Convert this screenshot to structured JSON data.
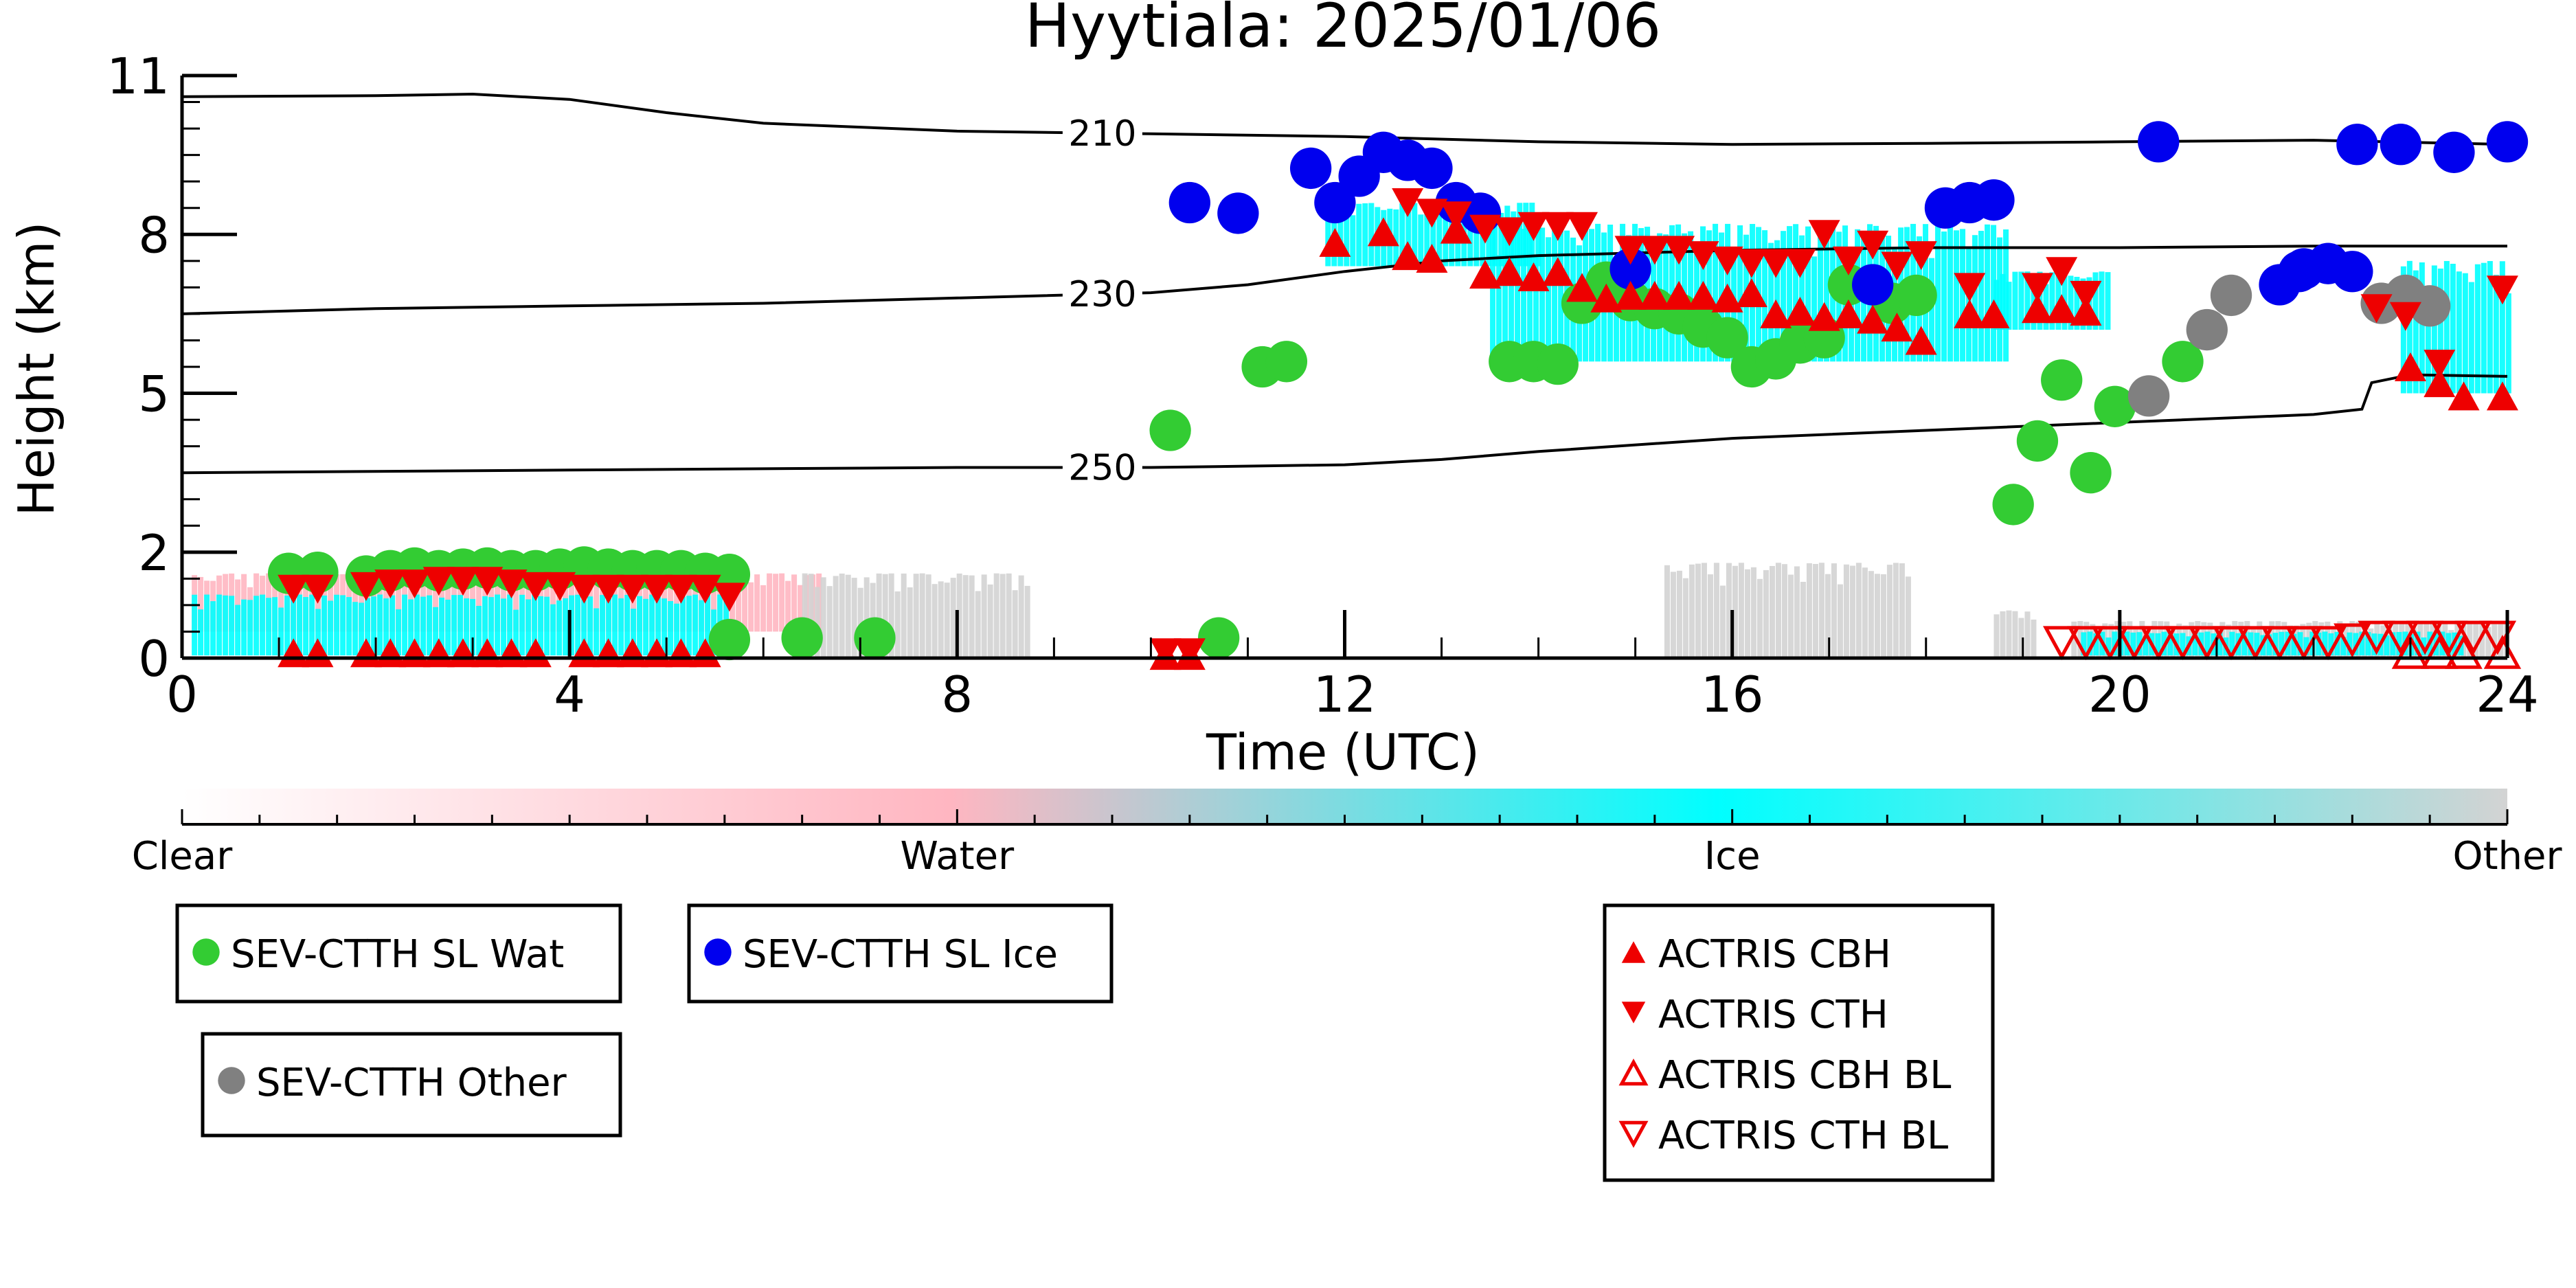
{
  "chart_data": {
    "type": "scatter",
    "title": "Hyytiala: 2025/01/06",
    "xlabel": "Time (UTC)",
    "ylabel": "Height (km)",
    "xlim": [
      0,
      24
    ],
    "ylim": [
      0,
      11
    ],
    "xticks": [
      0,
      4,
      8,
      12,
      16,
      20,
      24
    ],
    "yticks": [
      0,
      2,
      5,
      8,
      11
    ],
    "grid": false,
    "colors": {
      "clear": "#ffffff",
      "water": "#ffb6c1",
      "ice": "#00ffff",
      "other": "#d3d3d3",
      "sev_wat": "#33cc33",
      "sev_ice": "#0000ee",
      "sev_other": "#808080",
      "actris": "#ee0000"
    },
    "colorbar": {
      "labels": [
        "Clear",
        "Water",
        "Ice",
        "Other"
      ]
    },
    "contours": [
      {
        "label": "210",
        "points": [
          [
            0,
            10.6
          ],
          [
            2,
            10.62
          ],
          [
            3,
            10.65
          ],
          [
            4,
            10.55
          ],
          [
            5,
            10.3
          ],
          [
            6,
            10.1
          ],
          [
            8,
            9.95
          ],
          [
            10,
            9.9
          ],
          [
            12,
            9.85
          ],
          [
            14,
            9.75
          ],
          [
            16,
            9.7
          ],
          [
            18,
            9.72
          ],
          [
            20,
            9.75
          ],
          [
            22,
            9.78
          ],
          [
            24,
            9.7
          ]
        ],
        "label_x": 9.5
      },
      {
        "label": "230",
        "points": [
          [
            0,
            6.5
          ],
          [
            2,
            6.6
          ],
          [
            4,
            6.65
          ],
          [
            6,
            6.7
          ],
          [
            8,
            6.8
          ],
          [
            10,
            6.9
          ],
          [
            11,
            7.05
          ],
          [
            12,
            7.3
          ],
          [
            13,
            7.5
          ],
          [
            14,
            7.6
          ],
          [
            16,
            7.7
          ],
          [
            18,
            7.75
          ],
          [
            20,
            7.75
          ],
          [
            22,
            7.78
          ],
          [
            24,
            7.78
          ]
        ],
        "label_x": 9.5
      },
      {
        "label": "250",
        "points": [
          [
            0,
            3.5
          ],
          [
            4,
            3.55
          ],
          [
            8,
            3.6
          ],
          [
            10,
            3.6
          ],
          [
            12,
            3.65
          ],
          [
            13,
            3.75
          ],
          [
            14,
            3.9
          ],
          [
            16,
            4.15
          ],
          [
            18,
            4.3
          ],
          [
            20,
            4.45
          ],
          [
            22,
            4.6
          ],
          [
            22.5,
            4.7
          ],
          [
            22.6,
            5.2
          ],
          [
            23,
            5.35
          ],
          [
            24,
            5.32
          ]
        ],
        "label_x": 9.5
      }
    ],
    "background_fields": [
      {
        "class": "water",
        "x0": 0.1,
        "x1": 6.6,
        "y0": 0.5,
        "y1": 1.6
      },
      {
        "class": "ice",
        "x0": 0.1,
        "x1": 5.6,
        "y0": 0.05,
        "y1": 1.2
      },
      {
        "class": "other",
        "x0": 6.4,
        "x1": 8.7,
        "y0": 0.0,
        "y1": 1.6
      },
      {
        "class": "other",
        "x0": 15.3,
        "x1": 17.8,
        "y0": 0.0,
        "y1": 1.8
      },
      {
        "class": "other",
        "x0": 18.7,
        "x1": 19.1,
        "y0": 0.0,
        "y1": 0.9
      },
      {
        "class": "other",
        "x0": 19.5,
        "x1": 24.0,
        "y0": 0.0,
        "y1": 0.7
      },
      {
        "class": "ice",
        "x0": 11.8,
        "x1": 14.0,
        "y0": 7.4,
        "y1": 8.6
      },
      {
        "class": "ice",
        "x0": 13.5,
        "x1": 18.8,
        "y0": 5.6,
        "y1": 8.2
      },
      {
        "class": "ice",
        "x0": 18.7,
        "x1": 19.9,
        "y0": 6.2,
        "y1": 7.3
      },
      {
        "class": "ice",
        "x0": 22.9,
        "x1": 24.0,
        "y0": 5.0,
        "y1": 7.5
      },
      {
        "class": "ice",
        "x0": 19.6,
        "x1": 23.5,
        "y0": 0.05,
        "y1": 0.5
      }
    ],
    "series": [
      {
        "name": "SEV-CTTH SL Wat",
        "marker": "circle",
        "points": [
          [
            1.1,
            1.6
          ],
          [
            1.4,
            1.62
          ],
          [
            1.9,
            1.55
          ],
          [
            2.15,
            1.65
          ],
          [
            2.4,
            1.7
          ],
          [
            2.65,
            1.65
          ],
          [
            2.9,
            1.68
          ],
          [
            3.15,
            1.7
          ],
          [
            3.4,
            1.65
          ],
          [
            3.65,
            1.65
          ],
          [
            3.9,
            1.68
          ],
          [
            4.15,
            1.72
          ],
          [
            4.4,
            1.68
          ],
          [
            4.65,
            1.65
          ],
          [
            4.9,
            1.65
          ],
          [
            5.15,
            1.65
          ],
          [
            5.4,
            1.6
          ],
          [
            5.65,
            1.58
          ],
          [
            5.65,
            0.35
          ],
          [
            6.4,
            0.38
          ],
          [
            7.15,
            0.38
          ],
          [
            10.2,
            4.3
          ],
          [
            10.7,
            0.38
          ],
          [
            11.15,
            5.5
          ],
          [
            11.4,
            5.6
          ],
          [
            13.7,
            5.6
          ],
          [
            13.95,
            5.6
          ],
          [
            14.2,
            5.55
          ],
          [
            14.45,
            6.7
          ],
          [
            14.7,
            7.1
          ],
          [
            14.95,
            6.75
          ],
          [
            15.2,
            6.6
          ],
          [
            15.45,
            6.5
          ],
          [
            15.7,
            6.25
          ],
          [
            15.95,
            6.05
          ],
          [
            16.2,
            5.5
          ],
          [
            16.45,
            5.65
          ],
          [
            16.7,
            5.95
          ],
          [
            16.95,
            6.05
          ],
          [
            17.2,
            7.05
          ],
          [
            17.65,
            6.7
          ],
          [
            17.9,
            6.85
          ],
          [
            18.9,
            2.9
          ],
          [
            19.15,
            4.1
          ],
          [
            19.4,
            5.25
          ],
          [
            19.7,
            3.5
          ],
          [
            19.95,
            4.75
          ],
          [
            20.65,
            5.6
          ]
        ]
      },
      {
        "name": "SEV-CTTH SL Ice",
        "marker": "circle",
        "points": [
          [
            10.4,
            8.6
          ],
          [
            10.9,
            8.4
          ],
          [
            11.65,
            9.25
          ],
          [
            11.9,
            8.6
          ],
          [
            12.15,
            9.1
          ],
          [
            12.4,
            9.55
          ],
          [
            12.65,
            9.4
          ],
          [
            12.9,
            9.25
          ],
          [
            13.15,
            8.6
          ],
          [
            13.4,
            8.4
          ],
          [
            14.95,
            7.35
          ],
          [
            17.45,
            7.05
          ],
          [
            18.2,
            8.5
          ],
          [
            18.45,
            8.6
          ],
          [
            18.7,
            8.65
          ],
          [
            20.4,
            9.75
          ],
          [
            21.85,
            7.3
          ],
          [
            21.65,
            7.05
          ],
          [
            21.9,
            7.35
          ],
          [
            22.15,
            7.45
          ],
          [
            22.4,
            7.3
          ],
          [
            22.45,
            9.7
          ],
          [
            22.9,
            9.7
          ],
          [
            23.45,
            9.55
          ],
          [
            24.0,
            9.75
          ]
        ]
      },
      {
        "name": "SEV-CTTH Other",
        "marker": "circle",
        "points": [
          [
            20.3,
            4.95
          ],
          [
            20.9,
            6.2
          ],
          [
            21.15,
            6.85
          ],
          [
            22.7,
            6.7
          ],
          [
            22.95,
            6.85
          ],
          [
            23.2,
            6.65
          ]
        ]
      },
      {
        "name": "ACTRIS CBH",
        "marker": "triangle-up",
        "points": [
          [
            1.15,
            0.1
          ],
          [
            1.4,
            0.1
          ],
          [
            1.9,
            0.1
          ],
          [
            2.15,
            0.1
          ],
          [
            2.4,
            0.1
          ],
          [
            2.65,
            0.1
          ],
          [
            2.9,
            0.1
          ],
          [
            3.15,
            0.1
          ],
          [
            3.4,
            0.1
          ],
          [
            3.65,
            0.1
          ],
          [
            4.15,
            0.1
          ],
          [
            4.4,
            0.1
          ],
          [
            4.65,
            0.1
          ],
          [
            4.9,
            0.1
          ],
          [
            5.15,
            0.1
          ],
          [
            5.4,
            0.1
          ],
          [
            10.15,
            0.05
          ],
          [
            10.4,
            0.05
          ],
          [
            11.9,
            7.85
          ],
          [
            12.4,
            8.05
          ],
          [
            12.65,
            7.6
          ],
          [
            12.9,
            7.55
          ],
          [
            13.15,
            8.1
          ],
          [
            13.45,
            7.25
          ],
          [
            13.7,
            7.3
          ],
          [
            13.95,
            7.2
          ],
          [
            14.2,
            7.3
          ],
          [
            14.45,
            7.0
          ],
          [
            14.7,
            6.8
          ],
          [
            14.95,
            6.85
          ],
          [
            15.2,
            6.85
          ],
          [
            15.45,
            6.85
          ],
          [
            15.7,
            6.85
          ],
          [
            15.95,
            6.8
          ],
          [
            16.2,
            6.9
          ],
          [
            16.45,
            6.5
          ],
          [
            16.7,
            6.55
          ],
          [
            16.95,
            6.45
          ],
          [
            17.2,
            6.5
          ],
          [
            17.45,
            6.4
          ],
          [
            17.7,
            6.25
          ],
          [
            17.95,
            6.0
          ],
          [
            18.45,
            6.5
          ],
          [
            18.7,
            6.5
          ],
          [
            19.15,
            6.6
          ],
          [
            19.4,
            6.6
          ],
          [
            19.65,
            6.55
          ],
          [
            23.0,
            5.5
          ],
          [
            23.3,
            5.2
          ],
          [
            23.55,
            4.95
          ],
          [
            23.95,
            4.95
          ]
        ]
      },
      {
        "name": "ACTRIS CTH",
        "marker": "triangle-down",
        "points": [
          [
            1.15,
            1.3
          ],
          [
            1.4,
            1.3
          ],
          [
            1.9,
            1.35
          ],
          [
            2.15,
            1.4
          ],
          [
            2.4,
            1.4
          ],
          [
            2.65,
            1.45
          ],
          [
            2.9,
            1.45
          ],
          [
            3.15,
            1.45
          ],
          [
            3.4,
            1.4
          ],
          [
            3.65,
            1.35
          ],
          [
            3.9,
            1.35
          ],
          [
            4.15,
            1.3
          ],
          [
            4.4,
            1.3
          ],
          [
            4.65,
            1.3
          ],
          [
            4.9,
            1.3
          ],
          [
            5.15,
            1.3
          ],
          [
            5.4,
            1.3
          ],
          [
            5.65,
            1.15
          ],
          [
            10.15,
            0.1
          ],
          [
            10.4,
            0.1
          ],
          [
            12.65,
            8.6
          ],
          [
            12.9,
            8.4
          ],
          [
            13.15,
            8.35
          ],
          [
            13.45,
            8.1
          ],
          [
            13.7,
            8.05
          ],
          [
            13.95,
            8.15
          ],
          [
            14.2,
            8.15
          ],
          [
            14.45,
            8.15
          ],
          [
            14.95,
            7.7
          ],
          [
            15.2,
            7.7
          ],
          [
            15.45,
            7.7
          ],
          [
            15.7,
            7.6
          ],
          [
            15.95,
            7.5
          ],
          [
            16.2,
            7.45
          ],
          [
            16.45,
            7.45
          ],
          [
            16.7,
            7.45
          ],
          [
            16.95,
            8.0
          ],
          [
            17.2,
            7.5
          ],
          [
            17.45,
            7.8
          ],
          [
            17.7,
            7.4
          ],
          [
            17.95,
            7.6
          ],
          [
            18.45,
            7.0
          ],
          [
            19.15,
            7.0
          ],
          [
            19.4,
            7.3
          ],
          [
            19.65,
            6.85
          ],
          [
            22.65,
            6.6
          ],
          [
            22.95,
            6.45
          ],
          [
            23.3,
            5.55
          ],
          [
            23.95,
            6.95
          ]
        ]
      },
      {
        "name": "ACTRIS CBH BL",
        "marker": "triangle-up-open",
        "points": [
          [
            23.0,
            0.1
          ],
          [
            23.3,
            0.1
          ],
          [
            23.55,
            0.1
          ],
          [
            23.95,
            0.1
          ]
        ]
      },
      {
        "name": "ACTRIS CTH BL",
        "marker": "triangle-down-open",
        "points": [
          [
            19.4,
            0.3
          ],
          [
            19.65,
            0.3
          ],
          [
            19.9,
            0.3
          ],
          [
            20.15,
            0.3
          ],
          [
            20.4,
            0.3
          ],
          [
            20.65,
            0.3
          ],
          [
            20.9,
            0.3
          ],
          [
            21.15,
            0.3
          ],
          [
            21.4,
            0.3
          ],
          [
            21.65,
            0.3
          ],
          [
            21.9,
            0.3
          ],
          [
            22.15,
            0.3
          ],
          [
            22.4,
            0.35
          ],
          [
            22.65,
            0.4
          ],
          [
            22.9,
            0.4
          ],
          [
            23.15,
            0.4
          ],
          [
            23.4,
            0.4
          ],
          [
            23.65,
            0.4
          ],
          [
            23.9,
            0.4
          ]
        ]
      }
    ],
    "legends": [
      {
        "entries": [
          "SEV-CTTH SL Wat"
        ]
      },
      {
        "entries": [
          "SEV-CTTH SL Ice"
        ]
      },
      {
        "entries": [
          "SEV-CTTH Other"
        ]
      },
      {
        "entries": [
          "ACTRIS CBH",
          "ACTRIS CTH",
          "ACTRIS CBH BL",
          "ACTRIS CTH BL"
        ]
      }
    ]
  }
}
